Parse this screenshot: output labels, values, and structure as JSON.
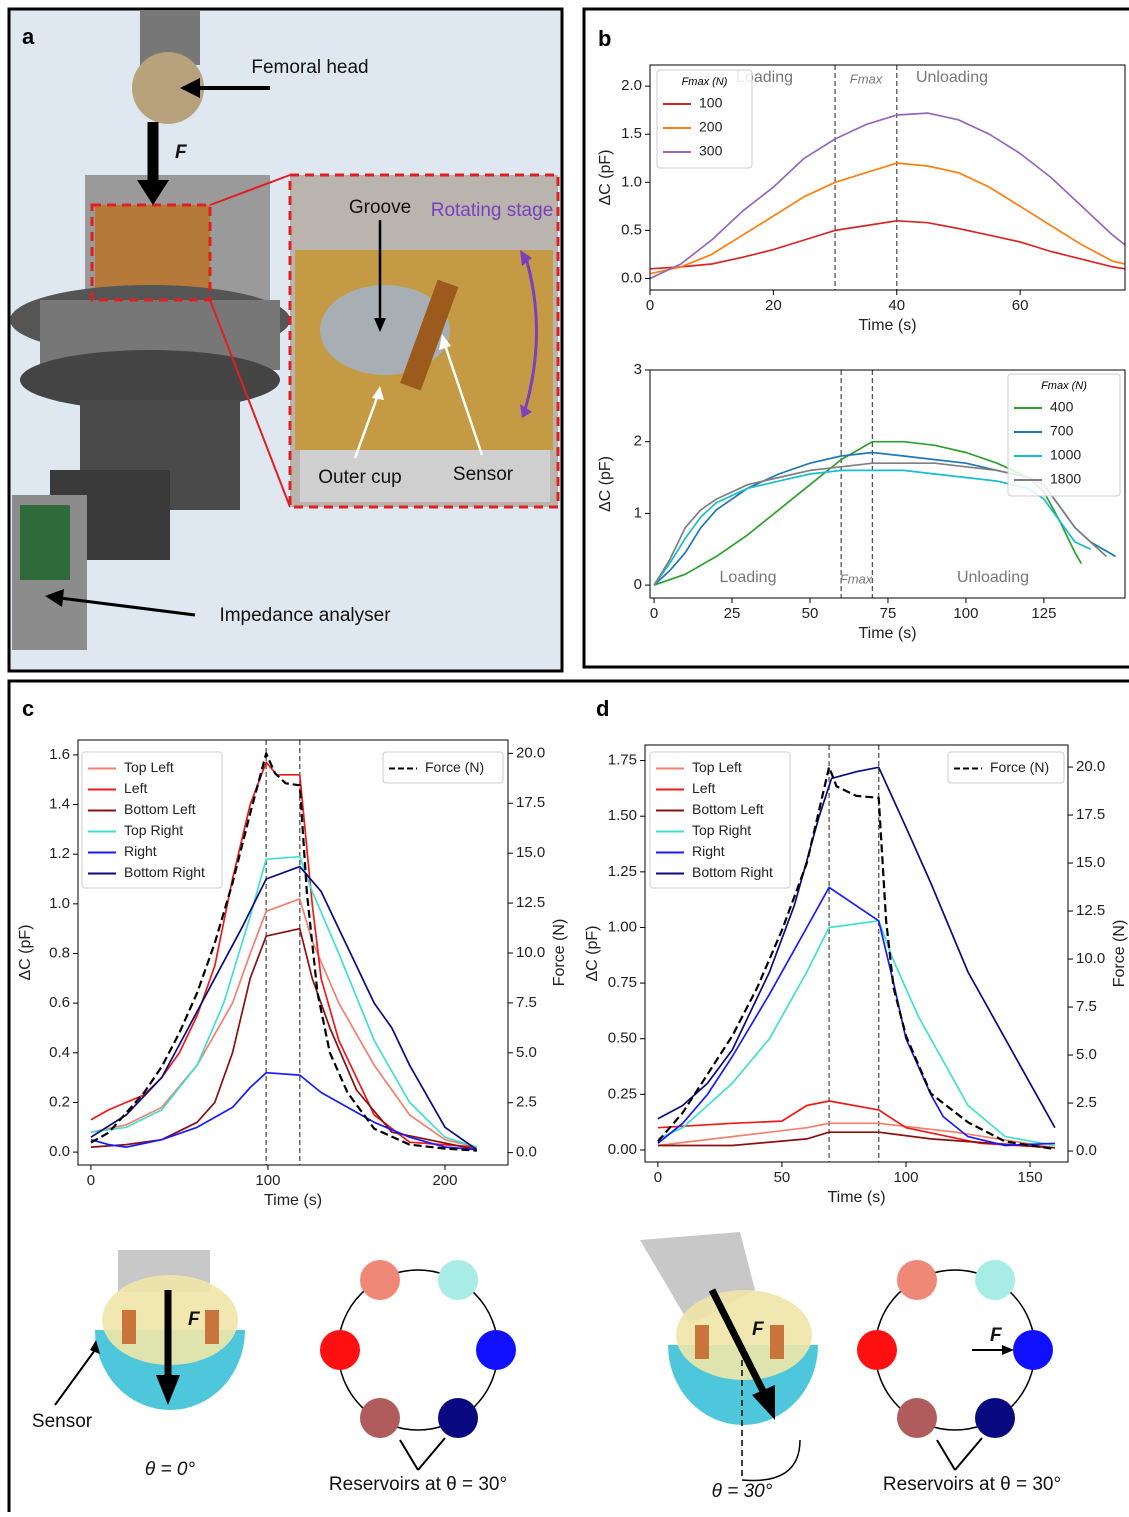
{
  "labels": [
    "a",
    "b",
    "c",
    "d"
  ],
  "photo_a": {
    "femoral_head": "Femoral head",
    "force": "F",
    "groove": "Groove",
    "rotating_stage": "Rotating stage",
    "outer_cup": "Outer cup",
    "sensor": "Sensor",
    "impedance_analyser": "Impedance analyser"
  },
  "schematic_c": {
    "force": "F",
    "sensor": "Sensor",
    "angle": "θ = 0°",
    "reservoirs": "Reservoirs at θ = 30°"
  },
  "schematic_d": {
    "force": "F",
    "angle": "θ = 30°",
    "ring_force": "F",
    "reservoirs": "Reservoirs at θ = 30°"
  },
  "chart_data": [
    {
      "type": "line",
      "xlabel": "Time (s)",
      "ylabel": "ΔC (pF)",
      "xlim": [
        0,
        77
      ],
      "ylim": [
        -0.12,
        2.22
      ],
      "xticks": [
        0,
        20,
        40,
        60
      ],
      "yticks": [
        {
          "value": 0,
          "label": "0.0"
        },
        0.5,
        {
          "value": 1,
          "label": "1.0"
        },
        1.5,
        {
          "value": 2,
          "label": "2.0"
        }
      ],
      "vlines": [
        30,
        40
      ],
      "annotations": [
        "Loading",
        "Fmax",
        "Unloading"
      ],
      "legend_title": "Fmax (N)",
      "legend": "upper left",
      "series": [
        {
          "name": "100",
          "color": "#d62728",
          "x": [
            0,
            5,
            10,
            15,
            20,
            25,
            30,
            35,
            40,
            45,
            50,
            55,
            60,
            65,
            70,
            75,
            77
          ],
          "values": [
            0.1,
            0.12,
            0.15,
            0.22,
            0.3,
            0.4,
            0.5,
            0.55,
            0.6,
            0.58,
            0.52,
            0.45,
            0.38,
            0.28,
            0.2,
            0.12,
            0.1
          ]
        },
        {
          "name": "200",
          "color": "#ff7f0e",
          "x": [
            0,
            5,
            10,
            15,
            20,
            25,
            30,
            35,
            40,
            45,
            50,
            55,
            60,
            65,
            70,
            75,
            77
          ],
          "values": [
            0.05,
            0.12,
            0.25,
            0.45,
            0.65,
            0.85,
            1.0,
            1.1,
            1.2,
            1.17,
            1.1,
            0.95,
            0.75,
            0.55,
            0.35,
            0.18,
            0.15
          ]
        },
        {
          "name": "300",
          "color": "#9467bd",
          "x": [
            0,
            5,
            10,
            15,
            20,
            25,
            30,
            35,
            40,
            45,
            50,
            55,
            60,
            65,
            70,
            75,
            77
          ],
          "values": [
            0.0,
            0.15,
            0.4,
            0.7,
            0.95,
            1.25,
            1.45,
            1.6,
            1.7,
            1.72,
            1.65,
            1.5,
            1.3,
            1.05,
            0.75,
            0.45,
            0.35
          ]
        }
      ]
    },
    {
      "type": "line",
      "xlabel": "Time (s)",
      "ylabel": "ΔC (pF)",
      "xlim": [
        -1.3,
        151
      ],
      "ylim": [
        -0.18,
        3
      ],
      "xticks": [
        0,
        25,
        50,
        75,
        100,
        125
      ],
      "yticks": [
        0,
        1,
        2,
        3
      ],
      "vlines": [
        60,
        70
      ],
      "annotations": [
        "Loading",
        "Fmax",
        "Unloading"
      ],
      "legend_title": "Fmax (N)",
      "legend": "upper right",
      "series": [
        {
          "name": "400",
          "color": "#2ca02c",
          "x": [
            0,
            10,
            20,
            30,
            40,
            50,
            60,
            70,
            80,
            90,
            100,
            110,
            120,
            125,
            130,
            135,
            137
          ],
          "values": [
            0,
            0.15,
            0.4,
            0.7,
            1.05,
            1.4,
            1.75,
            2.0,
            2.0,
            1.95,
            1.85,
            1.7,
            1.5,
            1.3,
            0.9,
            0.45,
            0.3
          ]
        },
        {
          "name": "700",
          "color": "#1f77b4",
          "x": [
            0,
            5,
            10,
            15,
            20,
            30,
            40,
            50,
            60,
            70,
            80,
            90,
            100,
            110,
            120,
            125,
            130,
            135,
            140,
            148
          ],
          "values": [
            0,
            0.2,
            0.45,
            0.8,
            1.05,
            1.35,
            1.55,
            1.7,
            1.8,
            1.85,
            1.8,
            1.75,
            1.7,
            1.6,
            1.5,
            1.4,
            1.1,
            0.8,
            0.6,
            0.4
          ]
        },
        {
          "name": "1000",
          "color": "#17becf",
          "x": [
            0,
            5,
            10,
            15,
            20,
            30,
            40,
            50,
            60,
            70,
            80,
            90,
            100,
            110,
            120,
            125,
            130,
            135,
            140
          ],
          "values": [
            0,
            0.3,
            0.65,
            0.95,
            1.15,
            1.35,
            1.45,
            1.55,
            1.6,
            1.6,
            1.6,
            1.55,
            1.5,
            1.45,
            1.35,
            1.2,
            0.9,
            0.6,
            0.5
          ]
        },
        {
          "name": "1800",
          "color": "#7f7f7f",
          "x": [
            0,
            5,
            10,
            15,
            20,
            30,
            40,
            50,
            60,
            70,
            80,
            90,
            100,
            110,
            120,
            125,
            130,
            135,
            140,
            145
          ],
          "values": [
            0,
            0.35,
            0.8,
            1.05,
            1.2,
            1.4,
            1.5,
            1.6,
            1.65,
            1.7,
            1.7,
            1.7,
            1.65,
            1.6,
            1.5,
            1.4,
            1.1,
            0.8,
            0.6,
            0.4
          ]
        }
      ]
    },
    {
      "type": "line",
      "xlabel": "Time (s)",
      "ylabel": "ΔC (pF)",
      "y2label": "Force (N)",
      "xlim": [
        -7.3,
        235.6
      ],
      "ylim": [
        -0.052,
        1.66
      ],
      "y2lim": [
        -0.62,
        20.67
      ],
      "xticks": [
        0,
        100,
        200
      ],
      "yticks": [
        {
          "value": 0,
          "label": "0.0"
        },
        0.2,
        0.4,
        0.6,
        0.8,
        {
          "value": 1,
          "label": "1.0"
        },
        1.2,
        1.4,
        1.6
      ],
      "y2ticks": [
        {
          "value": 0,
          "label": "0.0"
        },
        2.5,
        {
          "value": 5,
          "label": "5.0"
        },
        7.5,
        {
          "value": 10,
          "label": "10.0"
        },
        12.5,
        {
          "value": 15,
          "label": "15.0"
        },
        17.5,
        {
          "value": 20,
          "label": "20.0"
        }
      ],
      "vlines": [
        99,
        118
      ],
      "legend": "upper left",
      "series": [
        {
          "name": "Top Left",
          "color": "#f47f6f",
          "x": [
            0,
            20,
            40,
            60,
            80,
            90,
            99,
            118,
            125,
            140,
            160,
            180,
            200,
            218
          ],
          "values": [
            0.08,
            0.11,
            0.18,
            0.35,
            0.6,
            0.8,
            0.97,
            1.02,
            0.85,
            0.6,
            0.35,
            0.15,
            0.05,
            0.02
          ]
        },
        {
          "name": "Left",
          "color": "#f01818",
          "x": [
            0,
            10,
            20,
            30,
            40,
            50,
            60,
            70,
            80,
            90,
            99,
            105,
            118,
            125,
            130,
            140,
            150,
            160,
            180,
            218
          ],
          "values": [
            0.13,
            0.17,
            0.2,
            0.23,
            0.3,
            0.4,
            0.55,
            0.75,
            1.1,
            1.4,
            1.57,
            1.52,
            1.52,
            1.0,
            0.7,
            0.45,
            0.3,
            0.15,
            0.04,
            0.02
          ]
        },
        {
          "name": "Bottom Left",
          "color": "#8b1010",
          "x": [
            0,
            20,
            40,
            60,
            70,
            80,
            90,
            99,
            118,
            125,
            135,
            150,
            170,
            218
          ],
          "values": [
            0.02,
            0.03,
            0.05,
            0.12,
            0.2,
            0.4,
            0.7,
            0.87,
            0.9,
            0.7,
            0.5,
            0.25,
            0.08,
            0.01
          ]
        },
        {
          "name": "Top Right",
          "color": "#40e0d0",
          "x": [
            0,
            20,
            40,
            60,
            75,
            90,
            99,
            118,
            125,
            140,
            160,
            180,
            200,
            218
          ],
          "values": [
            0.08,
            0.1,
            0.17,
            0.35,
            0.6,
            0.95,
            1.18,
            1.19,
            1.05,
            0.8,
            0.45,
            0.2,
            0.06,
            0.02
          ]
        },
        {
          "name": "Right",
          "color": "#1a1aff",
          "x": [
            0,
            10,
            20,
            40,
            60,
            80,
            90,
            99,
            118,
            130,
            140,
            160,
            180,
            200,
            218
          ],
          "values": [
            0.05,
            0.03,
            0.02,
            0.05,
            0.1,
            0.18,
            0.26,
            0.32,
            0.31,
            0.24,
            0.2,
            0.12,
            0.06,
            0.02,
            0.01
          ]
        },
        {
          "name": "Bottom Right",
          "color": "#0a0a80",
          "x": [
            0,
            20,
            40,
            55,
            70,
            85,
            99,
            118,
            130,
            140,
            150,
            160,
            170,
            180,
            200,
            218
          ],
          "values": [
            0.06,
            0.15,
            0.3,
            0.5,
            0.7,
            0.9,
            1.1,
            1.15,
            1.05,
            0.9,
            0.75,
            0.6,
            0.5,
            0.35,
            0.1,
            0.01
          ]
        },
        {
          "name": "Force (N)",
          "color": "#000000",
          "axis": "y2",
          "style": "dashed",
          "x": [
            0,
            10,
            20,
            30,
            40,
            50,
            60,
            70,
            80,
            90,
            99,
            104,
            110,
            118,
            122,
            128,
            135,
            145,
            160,
            180,
            200,
            218
          ],
          "values": [
            0.5,
            1.0,
            2.0,
            3.0,
            4.3,
            6.0,
            8.0,
            10.5,
            13.5,
            17.0,
            20.0,
            19.0,
            18.5,
            18.4,
            13.0,
            8.0,
            5.0,
            3.0,
            1.2,
            0.4,
            0.2,
            0.1
          ]
        }
      ]
    },
    {
      "type": "line",
      "xlabel": "Time (s)",
      "ylabel": "ΔC (pF)",
      "y2label": "Force (N)",
      "xlim": [
        -5.2,
        165.3
      ],
      "ylim": [
        -0.054,
        1.82
      ],
      "y2lim": [
        -0.57,
        21.15
      ],
      "xticks": [
        0,
        50,
        100,
        150
      ],
      "yticks": [
        {
          "value": 0,
          "label": "0.00"
        },
        0.25,
        {
          "value": 0.5,
          "label": "0.50"
        },
        0.75,
        {
          "value": 1,
          "label": "1.00"
        },
        1.25,
        {
          "value": 1.5,
          "label": "1.50"
        },
        1.75
      ],
      "y2ticks": [
        {
          "value": 0,
          "label": "0.0"
        },
        2.5,
        {
          "value": 5,
          "label": "5.0"
        },
        7.5,
        {
          "value": 10,
          "label": "10.0"
        },
        12.5,
        {
          "value": 15,
          "label": "15.0"
        },
        17.5,
        {
          "value": 20,
          "label": "20.0"
        }
      ],
      "vlines": [
        69,
        89
      ],
      "legend": "upper left",
      "series": [
        {
          "name": "Top Left",
          "color": "#f47f6f",
          "x": [
            0,
            30,
            60,
            69,
            89,
            120,
            160
          ],
          "values": [
            0.02,
            0.06,
            0.1,
            0.12,
            0.12,
            0.08,
            0.01
          ]
        },
        {
          "name": "Left",
          "color": "#f01818",
          "x": [
            0,
            30,
            50,
            60,
            69,
            89,
            100,
            130,
            160
          ],
          "values": [
            0.1,
            0.12,
            0.13,
            0.2,
            0.22,
            0.18,
            0.1,
            0.03,
            0.01
          ]
        },
        {
          "name": "Bottom Left",
          "color": "#8b1010",
          "x": [
            0,
            30,
            60,
            69,
            89,
            110,
            160
          ],
          "values": [
            0.02,
            0.02,
            0.05,
            0.08,
            0.08,
            0.05,
            0.01
          ]
        },
        {
          "name": "Top Right",
          "color": "#40e0d0",
          "x": [
            0,
            10,
            20,
            30,
            45,
            60,
            69,
            89,
            95,
            105,
            115,
            125,
            140,
            160
          ],
          "values": [
            0.05,
            0.1,
            0.2,
            0.3,
            0.5,
            0.8,
            1.0,
            1.03,
            0.85,
            0.6,
            0.4,
            0.2,
            0.06,
            0.02
          ]
        },
        {
          "name": "Right",
          "color": "#1a1aff",
          "x": [
            0,
            10,
            20,
            30,
            45,
            60,
            69,
            89,
            95,
            100,
            110,
            115,
            125,
            140,
            160
          ],
          "values": [
            0.03,
            0.12,
            0.25,
            0.42,
            0.7,
            1.0,
            1.18,
            1.03,
            0.75,
            0.5,
            0.25,
            0.15,
            0.06,
            0.02,
            0.03
          ]
        },
        {
          "name": "Bottom Right",
          "color": "#0a0a80",
          "x": [
            0,
            10,
            20,
            30,
            45,
            55,
            65,
            70,
            80,
            89,
            100,
            110,
            125,
            140,
            150,
            160
          ],
          "values": [
            0.14,
            0.2,
            0.3,
            0.45,
            0.8,
            1.1,
            1.5,
            1.67,
            1.7,
            1.72,
            1.45,
            1.2,
            0.8,
            0.5,
            0.3,
            0.1
          ]
        },
        {
          "name": "Force (N)",
          "color": "#000000",
          "axis": "y2",
          "style": "dashed",
          "x": [
            0,
            10,
            20,
            30,
            40,
            50,
            60,
            69,
            72,
            80,
            89,
            92,
            95,
            100,
            110,
            125,
            140,
            160
          ],
          "values": [
            0.5,
            2.0,
            4.0,
            6.0,
            8.5,
            11.5,
            15.0,
            20.0,
            19.0,
            18.5,
            18.4,
            12.0,
            8.5,
            6.0,
            3.0,
            1.5,
            0.5,
            0.1
          ]
        }
      ]
    }
  ]
}
